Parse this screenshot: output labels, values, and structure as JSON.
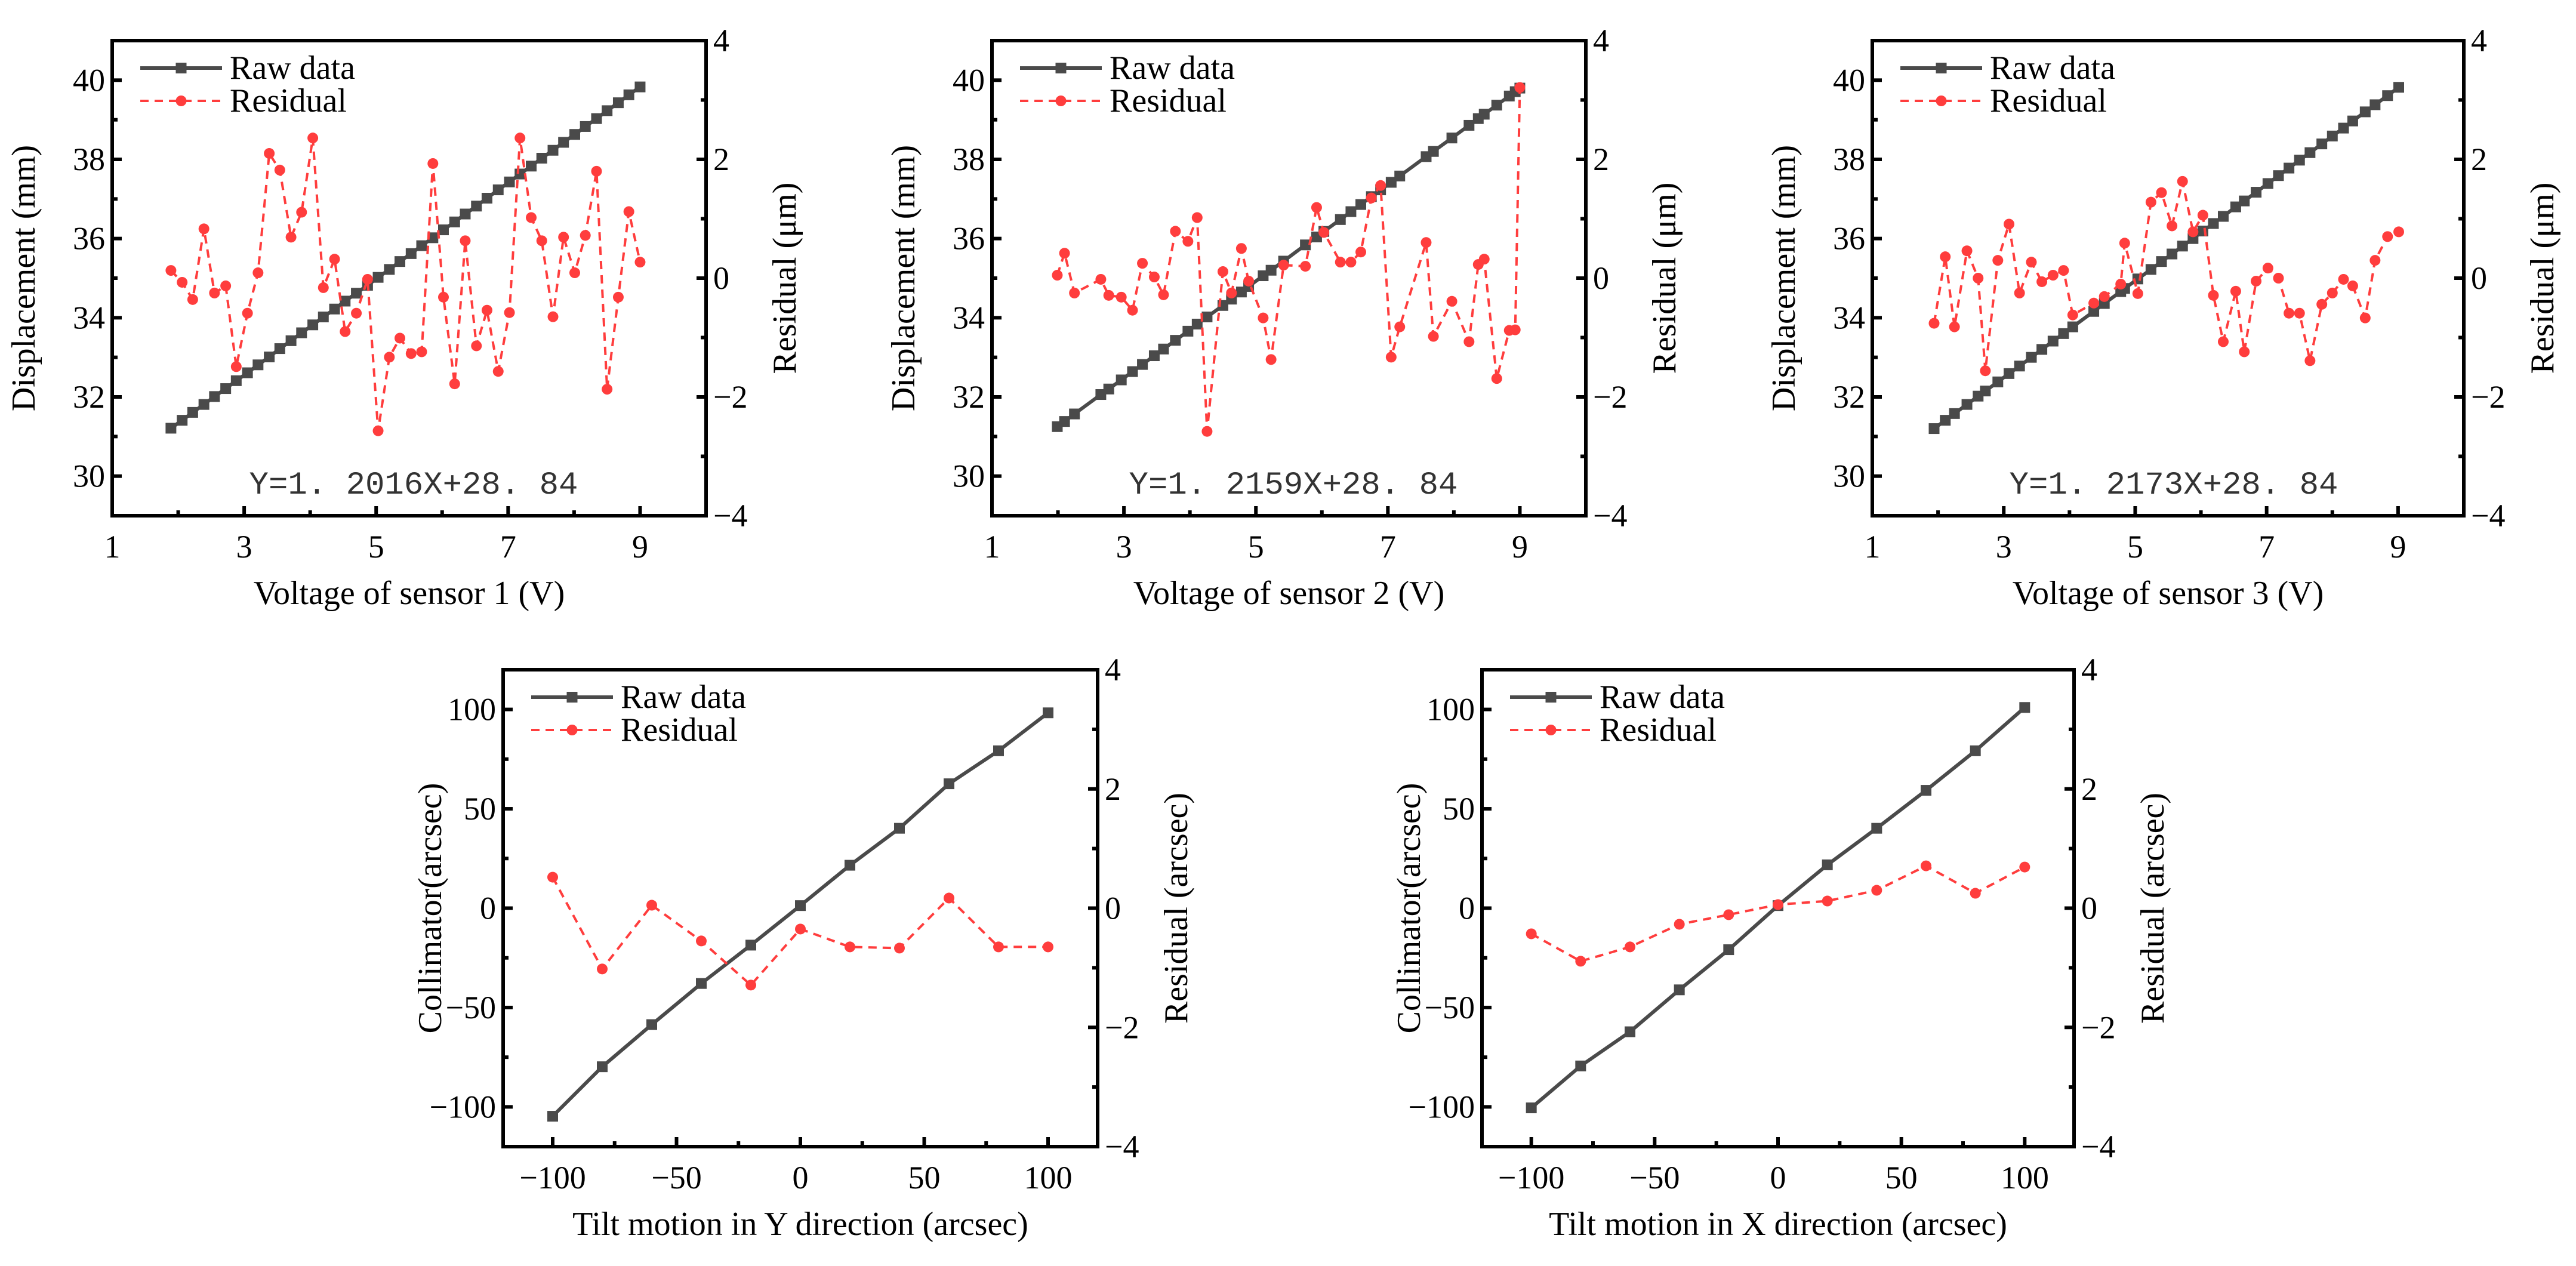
{
  "chart_data": [
    {
      "type": "line",
      "xlabel": "Voltage of sensor 1 (V)",
      "ylabel": "Displacement (mm)",
      "y2label": "Residual (μm)",
      "annotation": "Y=1. 2016X+28. 84",
      "legend": [
        "Raw data",
        "Residual"
      ],
      "legend_position": "top-left",
      "xlim": [
        1,
        10
      ],
      "ylim": [
        29,
        41
      ],
      "y2lim": [
        -4,
        4
      ],
      "xticks": [
        1,
        3,
        5,
        7,
        9
      ],
      "yticks": [
        30,
        32,
        34,
        36,
        38,
        40
      ],
      "y2ticks": [
        -4,
        -2,
        0,
        2,
        4
      ],
      "xminor": [
        2,
        4,
        6,
        8
      ],
      "yminor": [
        31,
        33,
        35,
        37,
        39
      ],
      "y2minor": [
        -3,
        -1,
        1,
        3
      ],
      "series": [
        {
          "name": "Raw data",
          "axis": "left",
          "x": [
            1.89,
            2.06,
            2.22,
            2.39,
            2.55,
            2.72,
            2.88,
            3.05,
            3.21,
            3.38,
            3.54,
            3.71,
            3.87,
            4.04,
            4.2,
            4.37,
            4.53,
            4.7,
            4.87,
            5.03,
            5.2,
            5.36,
            5.53,
            5.69,
            5.86,
            6.02,
            6.19,
            6.35,
            6.52,
            6.68,
            6.85,
            7.02,
            7.18,
            7.35,
            7.51,
            7.68,
            7.84,
            8.01,
            8.17,
            8.34,
            8.5,
            8.67,
            8.83,
            9.0
          ],
          "y": [
            31.21,
            31.41,
            31.61,
            31.81,
            32.01,
            32.21,
            32.41,
            32.61,
            32.81,
            33.01,
            33.22,
            33.42,
            33.62,
            33.82,
            34.02,
            34.22,
            34.42,
            34.62,
            34.82,
            35.02,
            35.22,
            35.42,
            35.62,
            35.82,
            36.02,
            36.22,
            36.42,
            36.62,
            36.82,
            37.02,
            37.23,
            37.43,
            37.63,
            37.83,
            38.03,
            38.23,
            38.43,
            38.63,
            38.83,
            39.03,
            39.23,
            39.43,
            39.63,
            39.83
          ]
        },
        {
          "name": "Residual",
          "axis": "right",
          "x": [
            1.89,
            2.06,
            2.22,
            2.39,
            2.55,
            2.72,
            2.88,
            3.05,
            3.21,
            3.38,
            3.54,
            3.71,
            3.87,
            4.04,
            4.2,
            4.37,
            4.53,
            4.7,
            4.87,
            5.03,
            5.2,
            5.36,
            5.53,
            5.69,
            5.86,
            6.02,
            6.19,
            6.35,
            6.52,
            6.68,
            6.85,
            7.02,
            7.18,
            7.35,
            7.51,
            7.68,
            7.84,
            8.01,
            8.17,
            8.34,
            8.5,
            8.67,
            8.83,
            9.0
          ],
          "y": [
            0.13,
            -0.07,
            -0.36,
            0.83,
            -0.25,
            -0.13,
            -1.49,
            -0.59,
            0.09,
            2.1,
            1.82,
            0.69,
            1.11,
            2.36,
            -0.16,
            0.32,
            -0.9,
            -0.59,
            -0.02,
            -2.57,
            -1.33,
            -1.01,
            -1.27,
            -1.24,
            1.93,
            -0.32,
            -1.78,
            0.63,
            -1.14,
            -0.54,
            -1.57,
            -0.58,
            2.36,
            1.02,
            0.63,
            -0.65,
            0.69,
            0.09,
            0.72,
            1.8,
            -1.87,
            -0.32,
            1.12,
            0.27
          ]
        }
      ]
    },
    {
      "type": "line",
      "xlabel": "Voltage of sensor 2 (V)",
      "ylabel": "Displacement (mm)",
      "y2label": "Residual (μm)",
      "annotation": "Y=1. 2159X+28. 84",
      "legend": [
        "Raw data",
        "Residual"
      ],
      "legend_position": "top-left",
      "xlim": [
        1,
        10
      ],
      "ylim": [
        29,
        41
      ],
      "y2lim": [
        -4,
        4
      ],
      "xticks": [
        1,
        3,
        5,
        7,
        9
      ],
      "yticks": [
        30,
        32,
        34,
        36,
        38,
        40
      ],
      "y2ticks": [
        -4,
        -2,
        0,
        2,
        4
      ],
      "xminor": [
        2,
        4,
        6,
        8
      ],
      "yminor": [
        31,
        33,
        35,
        37,
        39
      ],
      "y2minor": [
        -3,
        -1,
        1,
        3
      ],
      "series": [
        {
          "name": "Raw data",
          "axis": "left",
          "x": [
            1.99,
            2.1,
            2.25,
            2.65,
            2.77,
            2.96,
            3.13,
            3.28,
            3.46,
            3.6,
            3.78,
            3.97,
            4.11,
            4.26,
            4.5,
            4.63,
            4.78,
            4.89,
            5.11,
            5.23,
            5.42,
            5.75,
            5.92,
            6.03,
            6.28,
            6.44,
            6.59,
            6.75,
            6.89,
            7.05,
            7.18,
            7.58,
            7.69,
            7.97,
            8.23,
            8.37,
            8.46,
            8.65,
            8.84,
            8.93,
            9.0
          ],
          "y": [
            31.25,
            31.38,
            31.57,
            32.06,
            32.2,
            32.43,
            32.64,
            32.82,
            33.04,
            33.21,
            33.43,
            33.66,
            33.84,
            34.02,
            34.31,
            34.47,
            34.65,
            34.79,
            35.06,
            35.2,
            35.43,
            35.84,
            36.04,
            36.18,
            36.48,
            36.68,
            36.86,
            37.06,
            37.23,
            37.42,
            37.58,
            38.07,
            38.2,
            38.54,
            38.86,
            39.03,
            39.14,
            39.37,
            39.6,
            39.71,
            39.8
          ]
        },
        {
          "name": "Residual",
          "axis": "right",
          "x": [
            1.99,
            2.1,
            2.25,
            2.65,
            2.77,
            2.96,
            3.13,
            3.28,
            3.46,
            3.6,
            3.78,
            3.97,
            4.11,
            4.26,
            4.5,
            4.63,
            4.78,
            4.89,
            5.11,
            5.23,
            5.42,
            5.75,
            5.92,
            6.03,
            6.28,
            6.44,
            6.59,
            6.75,
            6.89,
            7.05,
            7.18,
            7.58,
            7.69,
            7.97,
            8.23,
            8.37,
            8.46,
            8.65,
            8.84,
            8.93,
            9.0
          ],
          "y": [
            0.05,
            0.42,
            -0.25,
            -0.02,
            -0.29,
            -0.32,
            -0.54,
            0.25,
            0.02,
            -0.28,
            0.79,
            0.62,
            1.02,
            -2.58,
            0.11,
            -0.25,
            0.5,
            -0.05,
            -0.67,
            -1.37,
            0.22,
            0.2,
            1.19,
            0.77,
            0.27,
            0.27,
            0.44,
            1.35,
            1.56,
            -1.33,
            -0.82,
            0.6,
            -0.98,
            -0.39,
            -1.07,
            0.23,
            0.32,
            -1.69,
            -0.88,
            -0.87,
            3.21
          ]
        }
      ]
    },
    {
      "type": "line",
      "xlabel": "Voltage of sensor 3 (V)",
      "ylabel": "Displacement (mm)",
      "y2label": "Residual (μm)",
      "annotation": "Y=1. 2173X+28. 84",
      "legend": [
        "Raw data",
        "Residual"
      ],
      "legend_position": "top-left",
      "xlim": [
        1,
        10
      ],
      "ylim": [
        29,
        41
      ],
      "y2lim": [
        -4,
        4
      ],
      "xticks": [
        1,
        3,
        5,
        7,
        9
      ],
      "yticks": [
        30,
        32,
        34,
        36,
        38,
        40
      ],
      "y2ticks": [
        -4,
        -2,
        0,
        2,
        4
      ],
      "xminor": [
        2,
        4,
        6,
        8
      ],
      "yminor": [
        31,
        33,
        35,
        37,
        39
      ],
      "y2minor": [
        -3,
        -1,
        1,
        3
      ],
      "series": [
        {
          "name": "Raw data",
          "axis": "left",
          "x": [
            1.94,
            2.11,
            2.25,
            2.44,
            2.61,
            2.72,
            2.91,
            3.08,
            3.24,
            3.42,
            3.58,
            3.75,
            3.91,
            4.05,
            4.37,
            4.53,
            4.78,
            4.84,
            5.04,
            5.24,
            5.4,
            5.56,
            5.72,
            5.88,
            6.03,
            6.19,
            6.34,
            6.53,
            6.66,
            6.84,
            7.02,
            7.18,
            7.34,
            7.5,
            7.66,
            7.84,
            8.0,
            8.17,
            8.31,
            8.5,
            8.65,
            8.84,
            9.01
          ],
          "y": [
            31.2,
            31.41,
            31.58,
            31.81,
            32.02,
            32.15,
            32.38,
            32.59,
            32.78,
            33.0,
            33.2,
            33.41,
            33.6,
            33.77,
            34.16,
            34.36,
            34.66,
            34.74,
            34.98,
            35.22,
            35.42,
            35.61,
            35.81,
            36.0,
            36.19,
            36.38,
            36.56,
            36.8,
            36.95,
            37.17,
            37.39,
            37.59,
            37.78,
            37.98,
            38.17,
            38.39,
            38.59,
            38.79,
            38.97,
            39.2,
            39.38,
            39.61,
            39.82
          ]
        },
        {
          "name": "Residual",
          "axis": "right",
          "x": [
            1.94,
            2.11,
            2.25,
            2.44,
            2.61,
            2.72,
            2.91,
            3.08,
            3.24,
            3.42,
            3.58,
            3.75,
            3.91,
            4.05,
            4.37,
            4.53,
            4.78,
            4.84,
            5.04,
            5.24,
            5.4,
            5.56,
            5.72,
            5.88,
            6.03,
            6.19,
            6.34,
            6.53,
            6.66,
            6.84,
            7.02,
            7.18,
            7.34,
            7.5,
            7.66,
            7.84,
            8.0,
            8.17,
            8.31,
            8.5,
            8.65,
            8.84,
            9.01
          ],
          "y": [
            -0.76,
            0.36,
            -0.82,
            0.46,
            0.0,
            -1.56,
            0.3,
            0.91,
            -0.25,
            0.27,
            -0.06,
            0.05,
            0.13,
            -0.62,
            -0.42,
            -0.31,
            -0.1,
            0.59,
            -0.26,
            1.28,
            1.44,
            0.88,
            1.63,
            0.78,
            1.06,
            -0.29,
            -1.07,
            -0.22,
            -1.24,
            -0.05,
            0.17,
            0.0,
            -0.59,
            -0.59,
            -1.39,
            -0.44,
            -0.25,
            -0.02,
            -0.13,
            -0.67,
            0.3,
            0.7,
            0.78
          ]
        }
      ]
    },
    {
      "type": "line",
      "xlabel": "Tilt motion in Y direction (arcsec)",
      "ylabel": "Collimator(arcsec)",
      "y2label": "Residual (arcsec)",
      "legend": [
        "Raw data",
        "Residual"
      ],
      "legend_position": "top-left",
      "xlim": [
        -120,
        120
      ],
      "ylim": [
        -120,
        120
      ],
      "y2lim": [
        -4,
        4
      ],
      "xticks": [
        -100,
        -50,
        0,
        50,
        100
      ],
      "yticks": [
        -100,
        -50,
        0,
        50,
        100
      ],
      "y2ticks": [
        -4,
        -2,
        0,
        2,
        4
      ],
      "xminor": [
        -75,
        -25,
        25,
        75
      ],
      "yminor": [
        -75,
        -25,
        25,
        75
      ],
      "y2minor": [
        -3,
        -1,
        1,
        3
      ],
      "series": [
        {
          "name": "Raw data",
          "axis": "left",
          "x": [
            -100,
            -80,
            -60,
            -40,
            -20,
            0,
            20,
            40,
            60,
            80,
            100
          ],
          "y": [
            -104.7,
            -79.8,
            -58.6,
            -37.9,
            -18.6,
            1.3,
            21.6,
            40.2,
            62.6,
            79.2,
            98.3
          ]
        },
        {
          "name": "Residual",
          "axis": "right",
          "x": [
            -100,
            -80,
            -60,
            -40,
            -20,
            0,
            20,
            40,
            60,
            80,
            100
          ],
          "y": [
            0.52,
            -1.02,
            0.05,
            -0.55,
            -1.29,
            -0.35,
            -0.65,
            -0.67,
            0.17,
            -0.65,
            -0.65
          ]
        }
      ]
    },
    {
      "type": "line",
      "xlabel": "Tilt motion in X direction (arcsec)",
      "ylabel": "Collimator(arcsec)",
      "y2label": "Residual (arcsec)",
      "legend": [
        "Raw data",
        "Residual"
      ],
      "legend_position": "top-left",
      "xlim": [
        -120,
        120
      ],
      "ylim": [
        -120,
        120
      ],
      "y2lim": [
        -4,
        4
      ],
      "xticks": [
        -100,
        -50,
        0,
        50,
        100
      ],
      "yticks": [
        -100,
        -50,
        0,
        50,
        100
      ],
      "y2ticks": [
        -4,
        -2,
        0,
        2,
        4
      ],
      "xminor": [
        -75,
        -25,
        25,
        75
      ],
      "yminor": [
        -75,
        -25,
        25,
        75
      ],
      "y2minor": [
        -3,
        -1,
        1,
        3
      ],
      "series": [
        {
          "name": "Raw data",
          "axis": "left",
          "x": [
            -100,
            -80,
            -60,
            -40,
            -20,
            0,
            20,
            40,
            60,
            80,
            100
          ],
          "y": [
            -100.5,
            -79.4,
            -62.2,
            -41.1,
            -20.9,
            1.3,
            21.8,
            40.2,
            59.3,
            79.2,
            101.0
          ]
        },
        {
          "name": "Residual",
          "axis": "right",
          "x": [
            -100,
            -80,
            -60,
            -40,
            -20,
            0,
            20,
            40,
            60,
            80,
            100
          ],
          "y": [
            -0.43,
            -0.89,
            -0.65,
            -0.27,
            -0.11,
            0.06,
            0.12,
            0.3,
            0.71,
            0.25,
            0.69
          ]
        }
      ]
    }
  ],
  "colors": {
    "raw": "#4a4a4a",
    "residual": "#ff3d3d",
    "axis": "#000000"
  }
}
